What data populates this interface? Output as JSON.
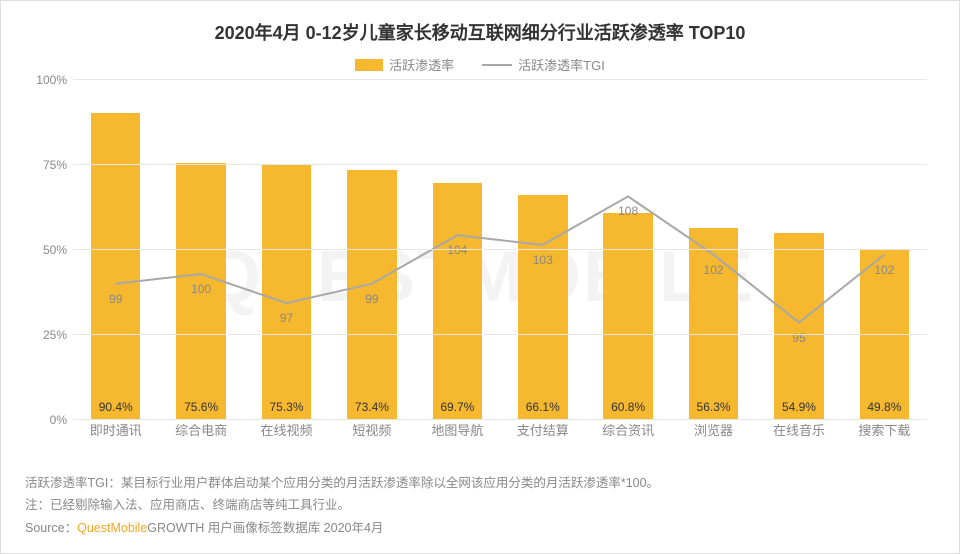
{
  "title": {
    "text": "2020年4月 0-12岁儿童家长移动互联网细分行业活跃渗透率 TOP10",
    "fontsize": 18,
    "color": "#333333"
  },
  "legend": {
    "bar": {
      "label": "活跃渗透率",
      "color": "#f5b82f"
    },
    "line": {
      "label": "活跃渗透率TGI",
      "color": "#a8a8a8"
    }
  },
  "chart": {
    "type": "bar+line",
    "categories": [
      "即时通讯",
      "综合电商",
      "在线视频",
      "短视频",
      "地图导航",
      "支付结算",
      "综合资讯",
      "浏览器",
      "在线音乐",
      "搜索下载"
    ],
    "bar_values": [
      90.4,
      75.6,
      75.3,
      73.4,
      69.7,
      66.1,
      60.8,
      56.3,
      54.9,
      49.8
    ],
    "bar_labels": [
      "90.4%",
      "75.6%",
      "75.3%",
      "73.4%",
      "69.7%",
      "66.1%",
      "60.8%",
      "56.3%",
      "54.9%",
      "49.8%"
    ],
    "tgi_values": [
      99,
      100,
      97,
      99,
      104,
      103,
      108,
      102,
      95,
      102
    ],
    "tgi_labels": [
      "99",
      "100",
      "97",
      "99",
      "104",
      "103",
      "108",
      "102",
      "95",
      "102"
    ],
    "bar_color": "#f5b82f",
    "line_color": "#a8a8a8",
    "line_width": 2,
    "y": {
      "min": 0,
      "max": 100,
      "step": 25,
      "ticks": [
        "0%",
        "25%",
        "50%",
        "75%",
        "100%"
      ]
    },
    "tgi_scale": {
      "min": 85,
      "max": 120
    },
    "background_color": "#ffffff",
    "grid_color": "#e6e6e6",
    "axis_label_color": "#888888",
    "axis_label_fontsize": 12,
    "bar_width_ratio": 0.58
  },
  "footer": {
    "line1": "活跃渗透率TGI：某目标行业用户群体启动某个应用分类的月活跃渗透率除以全网该应用分类的月活跃渗透率*100。",
    "line2": "注：已经剔除输入法、应用商店、终端商店等纯工具行业。",
    "source_prefix": "Source：",
    "source_brand": "QuestMobile",
    "source_suffix": "GROWTH 用户画像标签数据库 2020年4月"
  },
  "watermark": "QUESTMOBILE"
}
